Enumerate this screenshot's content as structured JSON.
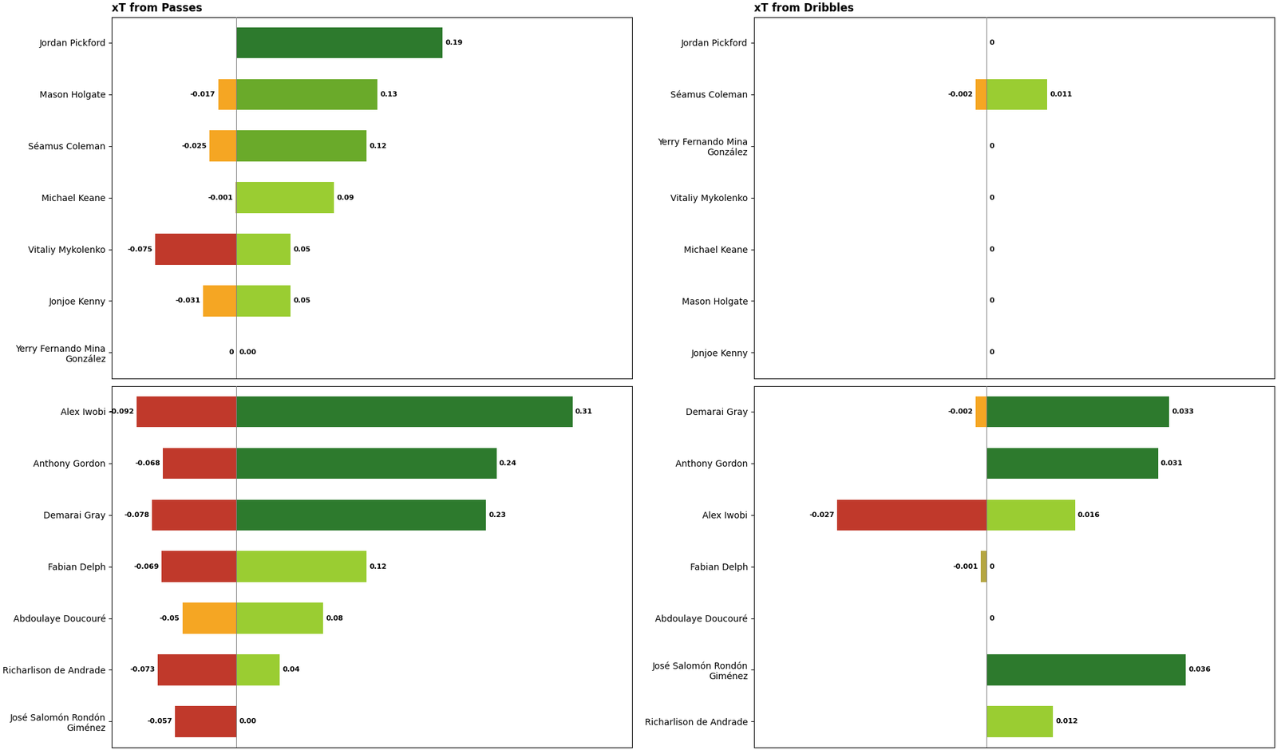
{
  "chart_data": [
    {
      "type": "bar",
      "orientation": "horizontal",
      "title": "xT from Passes",
      "categories": [
        "Jordan Pickford",
        "Mason Holgate",
        "Séamus Coleman",
        "Michael Keane",
        "Vitaliy Mykolenko",
        "Jonjoe Kenny",
        "Yerry Fernando Mina\nGonzález"
      ],
      "series": [
        {
          "values": [
            0,
            -0.017,
            -0.025,
            -0.001,
            -0.075,
            -0.031,
            0
          ],
          "value_labels": [
            null,
            "-0.017",
            "-0.025",
            "-0.001",
            "-0.075",
            "-0.031",
            "0"
          ],
          "colors": [
            null,
            "#f5a623",
            "#f5a623",
            "#b5a642",
            "#c0392b",
            "#f5a623",
            null
          ]
        },
        {
          "values": [
            0.19,
            0.13,
            0.12,
            0.09,
            0.05,
            0.05,
            0.0
          ],
          "value_labels": [
            "0.19",
            "0.13",
            "0.12",
            "0.09",
            "0.05",
            "0.05",
            "0.00"
          ],
          "colors": [
            "#2d7a2d",
            "#6aaa2a",
            "#6aaa2a",
            "#9acd32",
            "#9acd32",
            "#9acd32",
            null
          ]
        }
      ],
      "xlim": [
        -0.115,
        0.365
      ],
      "xticks": [],
      "data_labels": true,
      "tick_labels": "y"
    },
    {
      "type": "bar",
      "orientation": "horizontal",
      "categories": [
        "Alex Iwobi",
        "Anthony Gordon",
        "Demarai Gray",
        "Fabian Delph",
        "Abdoulaye Doucouré",
        "Richarlison de Andrade",
        "José Salomón Rondón\nGiménez"
      ],
      "series": [
        {
          "values": [
            -0.092,
            -0.068,
            -0.078,
            -0.069,
            -0.05,
            -0.073,
            -0.057
          ],
          "value_labels": [
            "-0.092",
            "-0.068",
            "-0.078",
            "-0.069",
            "-0.05",
            "-0.073",
            "-0.057"
          ],
          "colors": [
            "#c0392b",
            "#c0392b",
            "#c0392b",
            "#c0392b",
            "#f5a623",
            "#c0392b",
            "#c0392b"
          ]
        },
        {
          "values": [
            0.31,
            0.24,
            0.23,
            0.12,
            0.08,
            0.04,
            0.0
          ],
          "value_labels": [
            "0.31",
            "0.24",
            "0.23",
            "0.12",
            "0.08",
            "0.04",
            "0.00"
          ],
          "colors": [
            "#2d7a2d",
            "#2d7a2d",
            "#2d7a2d",
            "#9acd32",
            "#9acd32",
            "#9acd32",
            null
          ]
        }
      ],
      "xlim": [
        -0.115,
        0.365
      ],
      "xticks": [],
      "data_labels": true,
      "tick_labels": "y"
    },
    {
      "type": "bar",
      "orientation": "horizontal",
      "title": "xT from Dribbles",
      "categories": [
        "Jordan Pickford",
        "Séamus Coleman",
        "Yerry Fernando Mina\nGonzález",
        "Vitaliy Mykolenko",
        "Michael Keane",
        "Mason Holgate",
        "Jonjoe Kenny"
      ],
      "series": [
        {
          "values": [
            0,
            -0.002,
            0,
            0,
            0,
            0,
            0
          ],
          "value_labels": [
            null,
            "-0.002",
            null,
            null,
            null,
            null,
            null
          ],
          "colors": [
            null,
            "#f5a623",
            null,
            null,
            null,
            null,
            null
          ]
        },
        {
          "values": [
            0.0,
            0.011,
            0.0,
            0.0,
            0.0,
            0.0,
            0.0
          ],
          "value_labels": [
            "0",
            "0.011",
            "0",
            "0",
            "0",
            "0",
            "0"
          ],
          "colors": [
            null,
            "#9acd32",
            null,
            null,
            null,
            null,
            null
          ]
        }
      ],
      "xlim": [
        -0.042,
        0.052
      ],
      "xticks": [],
      "data_labels": true,
      "tick_labels": "y"
    },
    {
      "type": "bar",
      "orientation": "horizontal",
      "categories": [
        "Demarai Gray",
        "Anthony Gordon",
        "Alex Iwobi",
        "Fabian Delph",
        "Abdoulaye Doucouré",
        "José Salomón Rondón\nGiménez",
        "Richarlison de Andrade"
      ],
      "series": [
        {
          "values": [
            -0.002,
            0,
            -0.027,
            -0.001,
            0,
            0,
            0
          ],
          "value_labels": [
            "-0.002",
            null,
            "-0.027",
            "-0.001",
            null,
            null,
            null
          ],
          "colors": [
            "#f5a623",
            null,
            "#c0392b",
            "#b5a642",
            null,
            null,
            null
          ]
        },
        {
          "values": [
            0.033,
            0.031,
            0.016,
            0.0,
            0.0,
            0.036,
            0.012
          ],
          "value_labels": [
            "0.033",
            "0.031",
            "0.016",
            "0",
            "0",
            "0.036",
            "0.012"
          ],
          "colors": [
            "#2d7a2d",
            "#2d7a2d",
            "#9acd32",
            null,
            null,
            "#2d7a2d",
            "#9acd32"
          ]
        }
      ],
      "xlim": [
        -0.042,
        0.052
      ],
      "xticks": [],
      "data_labels": true,
      "tick_labels": "y"
    }
  ]
}
